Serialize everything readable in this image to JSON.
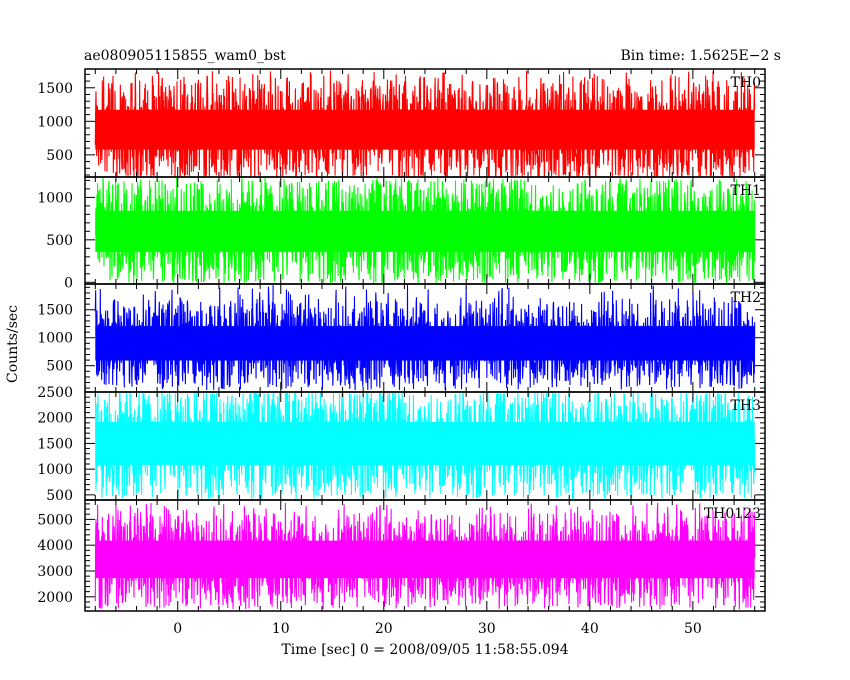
{
  "header": {
    "title": "ae080905115855_wam0_bst",
    "bin_time": "Bin time: 1.5625E−2 s"
  },
  "axes": {
    "ylabel": "Counts/sec",
    "xlabel": "Time [sec] 0 = 2008/09/05 11:58:55.094"
  },
  "chart_data": {
    "type": "line",
    "title": "ae080905115855_wam0_bst",
    "xlabel": "Time [sec] 0 = 2008/09/05 11:58:55.094",
    "ylabel": "Counts/sec",
    "xlim": [
      -9,
      57
    ],
    "x_ticks": [
      0,
      10,
      20,
      30,
      40,
      50
    ],
    "x_data_range": [
      -8,
      56
    ],
    "bin_time_s": 0.015625,
    "panels": [
      {
        "name": "TH0",
        "color": "#ff0000",
        "ylim": [
          170,
          1780
        ],
        "y_ticks": [
          500,
          1000,
          1500
        ],
        "y_tick_labels": [
          "500",
          "1000",
          "1500"
        ],
        "mean": 740,
        "typical_range": [
          200,
          1550
        ],
        "max_spike": 1760
      },
      {
        "name": "TH1",
        "color": "#00ff00",
        "ylim": [
          -20,
          1240
        ],
        "y_ticks": [
          0,
          500,
          1000
        ],
        "y_tick_labels": [
          "0",
          "500",
          "1000"
        ],
        "mean": 560,
        "typical_range": [
          50,
          1150
        ],
        "max_spike": 1220
      },
      {
        "name": "TH2",
        "color": "#0000ff",
        "ylim": [
          30,
          1960
        ],
        "y_ticks": [
          500,
          1000,
          1500
        ],
        "y_tick_labels": [
          "500",
          "1000",
          "1500"
        ],
        "mean": 830,
        "typical_range": [
          200,
          1600
        ],
        "max_spike": 1950
      },
      {
        "name": "TH3",
        "color": "#00ffff",
        "ylim": [
          400,
          2500
        ],
        "y_ticks": [
          500,
          1000,
          1500,
          2000,
          2500
        ],
        "y_tick_labels": [
          "500",
          "1000",
          "1500",
          "2000",
          "2500"
        ],
        "mean": 1450,
        "typical_range": [
          550,
          2450
        ],
        "max_spike": 2500
      },
      {
        "name": "TH0123",
        "color": "#ff00ff",
        "ylim": [
          1450,
          5750
        ],
        "y_ticks": [
          2000,
          3000,
          4000,
          5000
        ],
        "y_tick_labels": [
          "2000",
          "3000",
          "4000",
          "5000"
        ],
        "mean": 3350,
        "typical_range": [
          1800,
          5100
        ],
        "max_spike": 5650
      }
    ]
  }
}
